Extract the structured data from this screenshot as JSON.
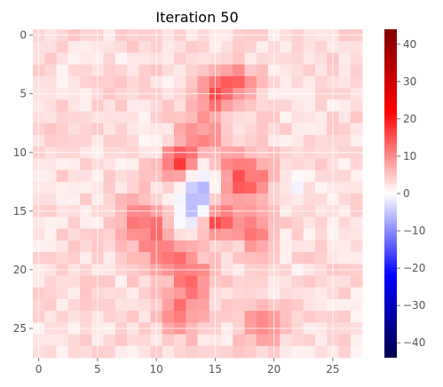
{
  "chart_data": {
    "type": "heatmap",
    "title": "Iteration 50",
    "xlabel": "",
    "ylabel": "",
    "rows": 28,
    "cols": 28,
    "x_ticks": [
      0,
      5,
      10,
      15,
      20,
      25
    ],
    "y_ticks": [
      0,
      5,
      10,
      15,
      20,
      25
    ],
    "x_tick_labels": [
      "0",
      "5",
      "10",
      "15",
      "20",
      "25"
    ],
    "y_tick_labels": [
      "0",
      "5",
      "10",
      "15",
      "20",
      "25"
    ],
    "colormap": "seismic",
    "vmin": -44,
    "vmax": 44,
    "colorbar_ticks": [
      40,
      30,
      20,
      10,
      0,
      -10,
      -20,
      -30,
      -40
    ],
    "colorbar_tick_labels": [
      "40",
      "30",
      "20",
      "10",
      "0",
      "−10",
      "−20",
      "−30",
      "−40"
    ],
    "grid": true,
    "background_level": 3,
    "hotspots": [
      {
        "row": 5,
        "col": 15,
        "value": 10,
        "radius": 1.2
      },
      {
        "row": 4,
        "col": 17,
        "value": 9,
        "radius": 1.0
      },
      {
        "row": 9,
        "col": 14,
        "value": 8,
        "radius": 1.5
      },
      {
        "row": 11,
        "col": 12,
        "value": 12,
        "radius": 1.0
      },
      {
        "row": 12,
        "col": 18,
        "value": 10,
        "radius": 1.2
      },
      {
        "row": 13,
        "col": 16,
        "value": 8,
        "radius": 1.5
      },
      {
        "row": 16,
        "col": 15,
        "value": 14,
        "radius": 0.9
      },
      {
        "row": 16,
        "col": 9,
        "value": 9,
        "radius": 1.5
      },
      {
        "row": 17,
        "col": 18,
        "value": 9,
        "radius": 1.2
      },
      {
        "row": 19,
        "col": 11,
        "value": 8,
        "radius": 1.5
      },
      {
        "row": 21,
        "col": 13,
        "value": 8,
        "radius": 1.3
      },
      {
        "row": 24,
        "col": 12,
        "value": 9,
        "radius": 1.2
      },
      {
        "row": 25,
        "col": 19,
        "value": 8,
        "radius": 1.2
      },
      {
        "row": 13,
        "col": 14,
        "value": -9,
        "radius": 1.3
      },
      {
        "row": 15,
        "col": 13,
        "value": -8,
        "radius": 1.3
      },
      {
        "row": 11,
        "col": 14,
        "value": -6,
        "radius": 0.8
      },
      {
        "row": 12,
        "col": 18,
        "value": -4,
        "radius": 0.6
      },
      {
        "row": 8,
        "col": 9,
        "value": -2,
        "radius": 1.0
      },
      {
        "row": 21,
        "col": 11,
        "value": -5,
        "radius": 0.7
      },
      {
        "row": 13,
        "col": 22,
        "value": -3,
        "radius": 0.7
      },
      {
        "row": 18,
        "col": 17,
        "value": -3,
        "radius": 0.7
      },
      {
        "row": 8,
        "col": 17,
        "value": -3,
        "radius": 0.6
      },
      {
        "row": 2,
        "col": 15,
        "value": -2,
        "radius": 0.8
      }
    ]
  }
}
